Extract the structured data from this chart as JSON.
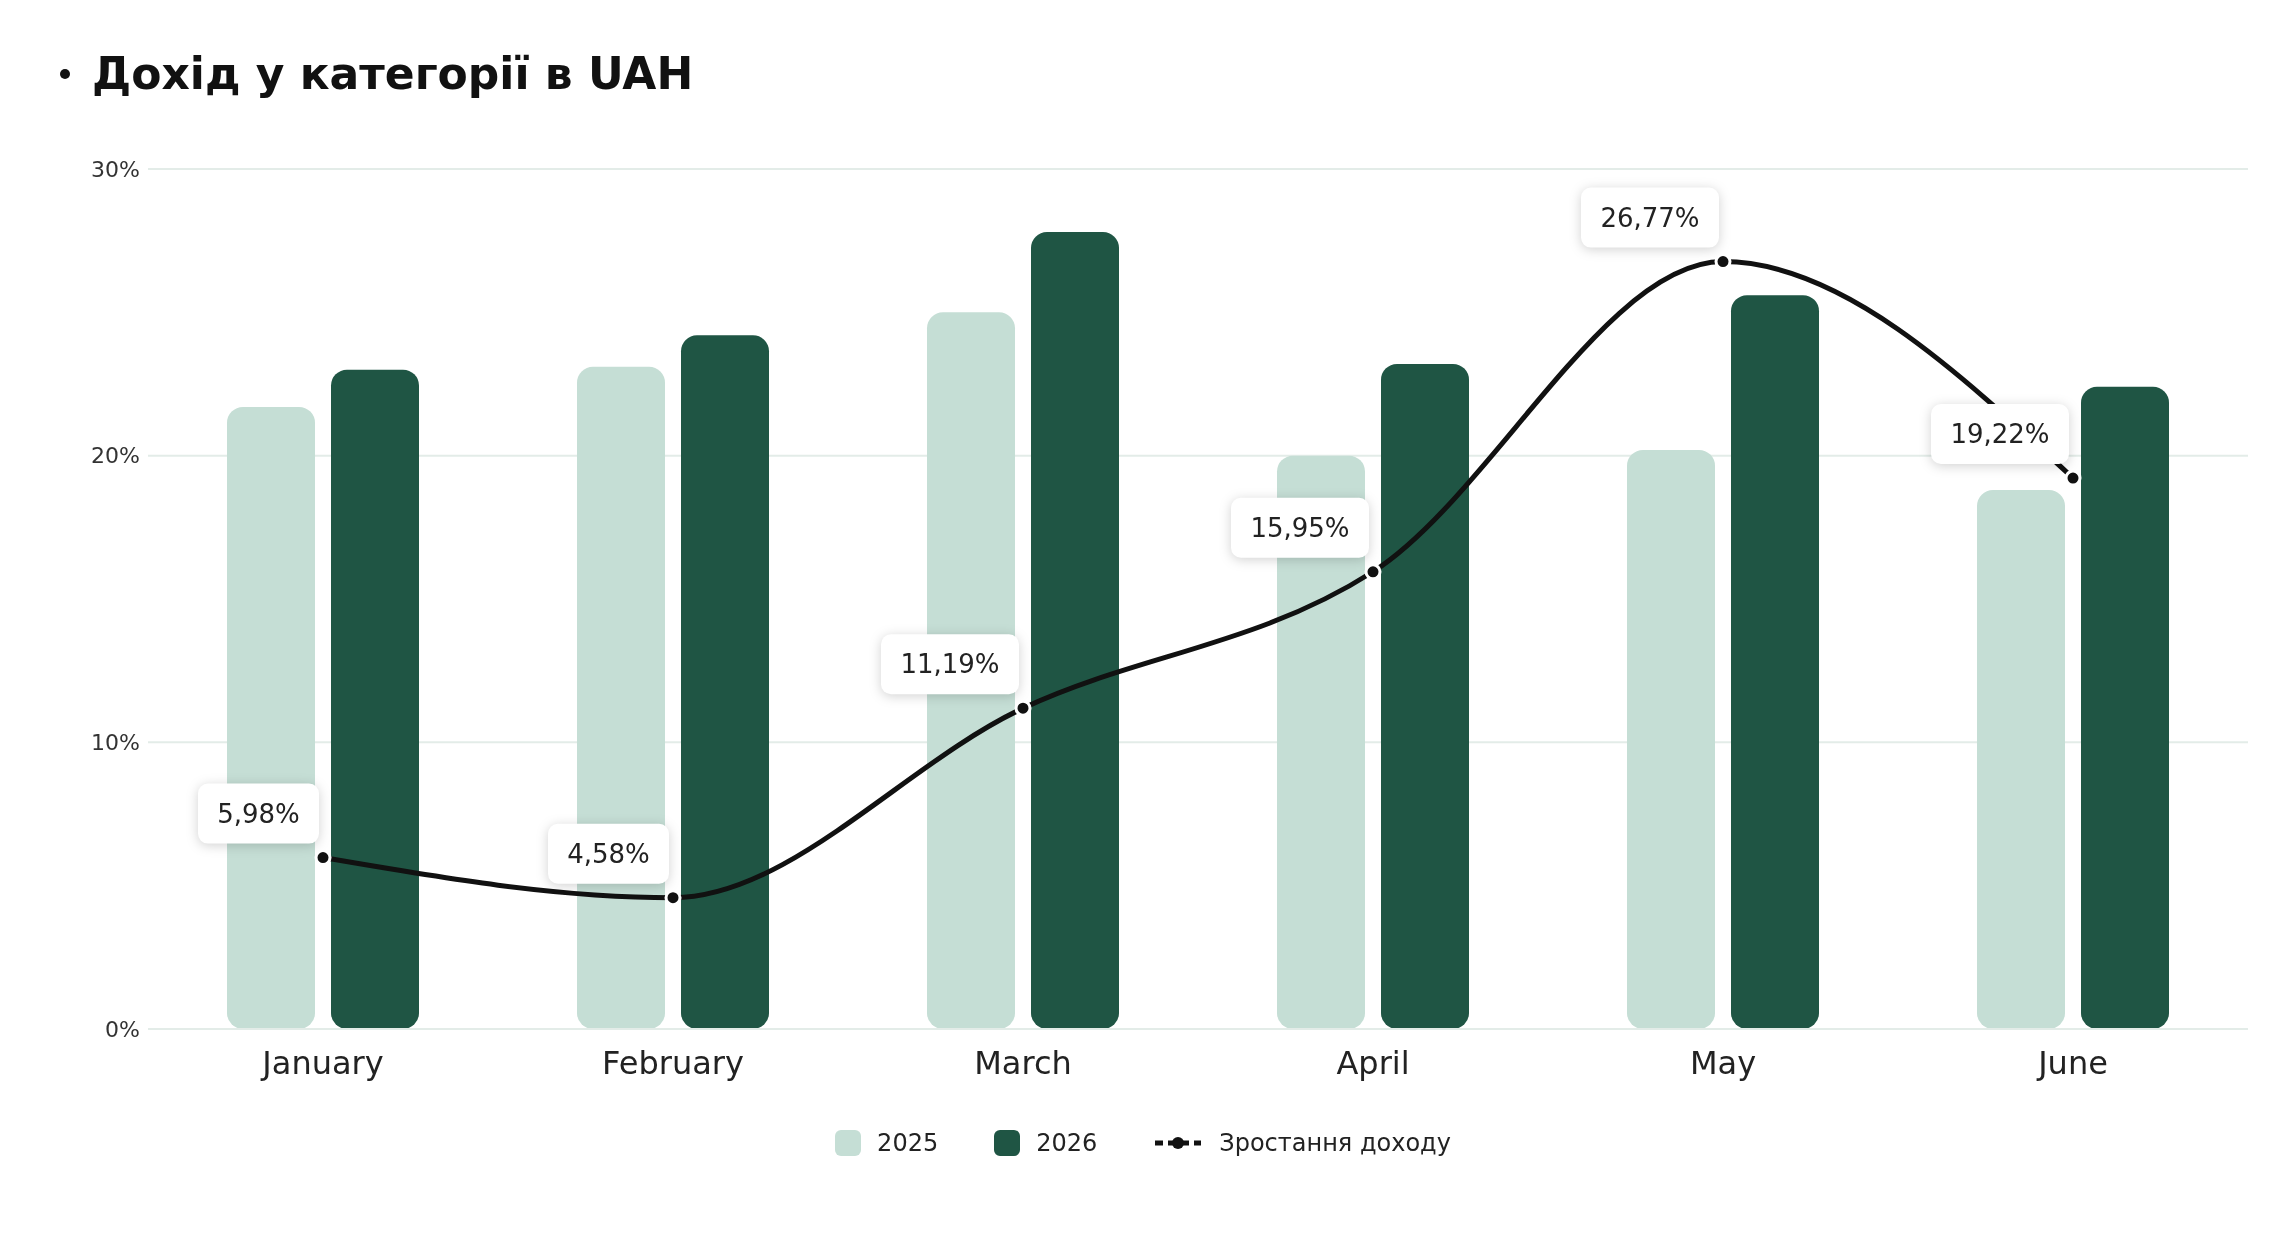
{
  "chart_data": {
    "type": "bar",
    "title": "Дохід у категорії в UAH",
    "categories": [
      "January",
      "February",
      "March",
      "April",
      "May",
      "June"
    ],
    "series": [
      {
        "name": "2025",
        "color": "#c5ded5",
        "values": [
          21.7,
          23.1,
          25.0,
          20.0,
          20.2,
          18.8
        ]
      },
      {
        "name": "2026",
        "color": "#1f5544",
        "values": [
          23.0,
          24.2,
          27.8,
          23.2,
          25.6,
          22.4
        ]
      },
      {
        "name": "Зростання доходу",
        "type": "line",
        "color": "#111111",
        "values": [
          5.98,
          4.58,
          11.19,
          15.95,
          26.77,
          19.22
        ],
        "value_labels": [
          "5,98%",
          "4,58%",
          "11,19%",
          "15,95%",
          "26,77%",
          "19,22%"
        ]
      }
    ],
    "ylim": [
      0,
      30
    ],
    "yticks": [
      {
        "value": 0,
        "label": "0%"
      },
      {
        "value": 10,
        "label": "10%"
      },
      {
        "value": 20,
        "label": "20%"
      },
      {
        "value": 30,
        "label": "30%"
      }
    ],
    "grid": "y",
    "legend": "bottom",
    "marker": "circle",
    "line_style": "solid"
  }
}
